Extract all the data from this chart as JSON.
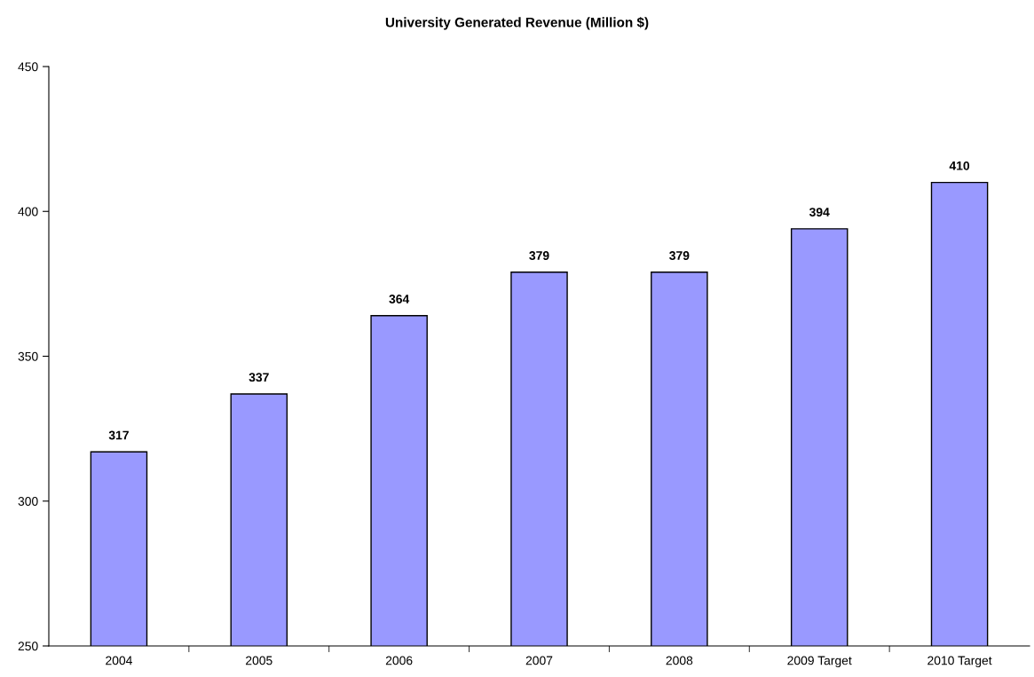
{
  "chart_data": {
    "type": "bar",
    "title": "University Generated Revenue (Million $)",
    "categories": [
      "2004",
      "2005",
      "2006",
      "2007",
      "2008",
      "2009 Target",
      "2010 Target"
    ],
    "values": [
      317,
      337,
      364,
      379,
      379,
      394,
      410
    ],
    "color": "#9999ff",
    "ylim": [
      250,
      450
    ],
    "yticks": [
      250,
      300,
      350,
      400,
      450
    ],
    "data_labels": true,
    "grid": false,
    "legend": false
  }
}
